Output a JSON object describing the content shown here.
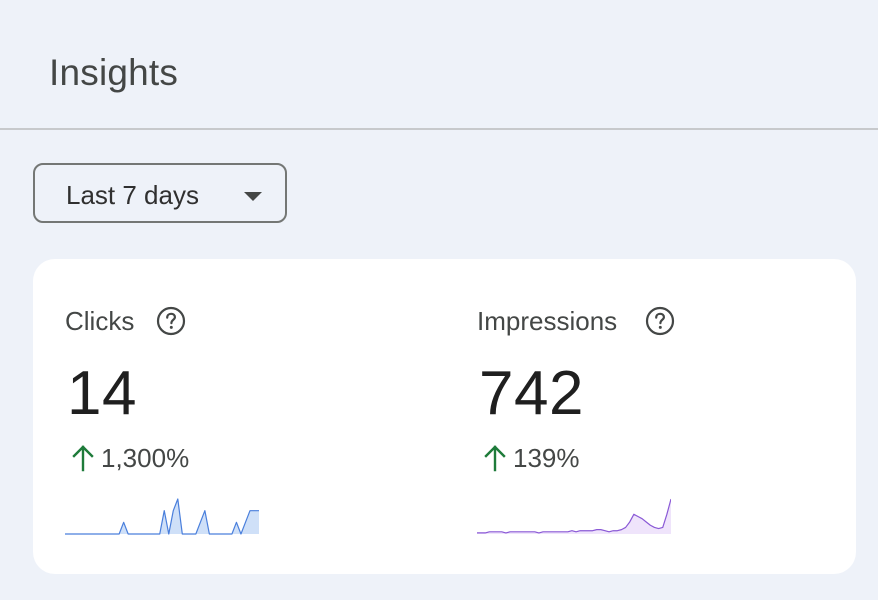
{
  "header": {
    "title": "Insights"
  },
  "date_range": {
    "selected": "Last 7 days"
  },
  "metrics": [
    {
      "label": "Clicks",
      "value": "14",
      "change": "1,300%",
      "trend": "up",
      "sparkline": [
        0,
        0,
        0,
        0,
        0,
        0,
        0,
        0,
        0,
        0,
        0,
        0,
        0,
        1,
        0,
        0,
        0,
        0,
        0,
        0,
        0,
        0,
        2,
        0,
        2,
        3,
        0,
        0,
        0,
        0,
        1,
        2,
        0,
        0,
        0,
        0,
        0,
        0,
        1,
        0,
        1,
        2,
        2,
        2
      ],
      "line_color": "#4a7fdc",
      "fill_color": "#cfe0f8"
    },
    {
      "label": "Impressions",
      "value": "742",
      "change": "139%",
      "trend": "up",
      "sparkline": [
        1,
        1,
        1,
        2,
        2,
        2,
        2,
        1,
        2,
        2,
        2,
        2,
        2,
        2,
        2,
        1,
        2,
        2,
        2,
        2,
        2,
        2,
        2,
        3,
        2,
        3,
        3,
        3,
        3,
        4,
        4,
        3,
        2,
        3,
        3,
        4,
        6,
        11,
        18,
        16,
        14,
        11,
        8,
        6,
        5,
        6,
        18,
        32
      ],
      "line_color": "#8a59d6",
      "fill_color": "#efe4fb"
    }
  ],
  "colors": {
    "trend_up": "#1e7b3a"
  }
}
